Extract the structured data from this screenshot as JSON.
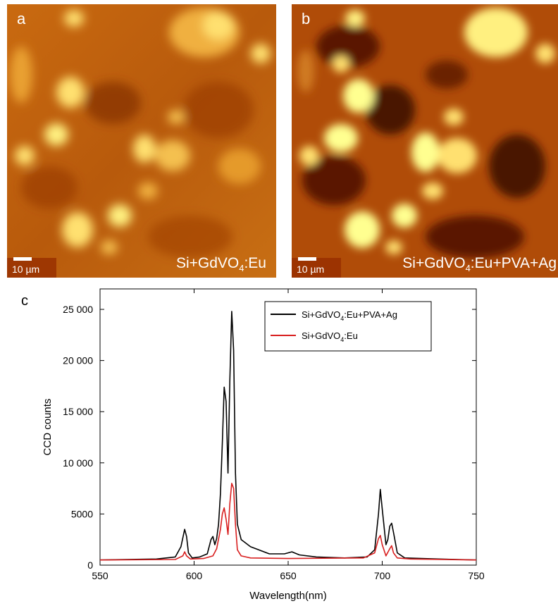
{
  "panel_a": {
    "letter": "a",
    "scalebar": "10 µm",
    "caption_main": "Si+GdVO",
    "caption_sub": "4",
    "caption_end": ":Eu"
  },
  "panel_b": {
    "letter": "b",
    "scalebar": "10 µm",
    "caption_main": "Si+GdVO",
    "caption_sub": "4",
    "caption_end": ":Eu+PVA+Ag"
  },
  "panel_c": {
    "letter": "c"
  },
  "colors": {
    "black_series": "#000000",
    "red_series": "#d81e1e",
    "map_dark": "#5a1800",
    "map_bright": "#ffff90"
  },
  "chart_data": {
    "type": "line",
    "xlabel": "Wavelength(nm)",
    "ylabel": "CCD counts",
    "xlim": [
      550,
      750
    ],
    "ylim": [
      0,
      27000
    ],
    "xticks": [
      550,
      600,
      650,
      700,
      750
    ],
    "xtick_labels": [
      "550",
      "600",
      "650",
      "700",
      "750"
    ],
    "yticks": [
      0,
      5000,
      10000,
      15000,
      20000,
      25000
    ],
    "ytick_labels": [
      "0",
      "5000",
      "10 000",
      "15 000",
      "20 000",
      "25 000"
    ],
    "legend_position": "top-right",
    "series": [
      {
        "name_main": "Si+GdVO",
        "name_sub": "4",
        "name_end": ":Eu+PVA+Ag",
        "color": "#000000",
        "x": [
          550,
          580,
          590,
          593,
          595,
          596,
          597,
          599,
          603,
          607,
          609,
          610,
          611,
          612,
          613,
          614,
          615,
          616,
          617,
          618,
          619,
          620,
          621,
          622,
          623,
          625,
          630,
          640,
          648,
          652,
          656,
          665,
          680,
          692,
          696,
          698,
          699,
          700,
          702,
          703,
          704,
          705,
          706,
          708,
          712,
          730,
          750
        ],
        "y": [
          500,
          600,
          800,
          1800,
          3500,
          2800,
          1200,
          700,
          800,
          1100,
          2500,
          2800,
          2000,
          2600,
          4000,
          7000,
          12000,
          17400,
          16000,
          9000,
          18000,
          24800,
          21000,
          9000,
          4000,
          2500,
          1800,
          1100,
          1100,
          1300,
          1000,
          800,
          700,
          800,
          1500,
          5000,
          7400,
          5500,
          2000,
          2500,
          3800,
          4100,
          3200,
          1200,
          700,
          600,
          500
        ]
      },
      {
        "name_main": "Si+GdVO",
        "name_sub": "4",
        "name_end": ":Eu",
        "color": "#d81e1e",
        "x": [
          550,
          590,
          594,
          595,
          596,
          598,
          605,
          610,
          612,
          614,
          615,
          616,
          617,
          618,
          619,
          620,
          621,
          622,
          623,
          625,
          630,
          650,
          690,
          696,
          698,
          699,
          700,
          702,
          704,
          705,
          706,
          708,
          715,
          750
        ],
        "y": [
          500,
          550,
          900,
          1300,
          900,
          600,
          650,
          900,
          1600,
          3500,
          5000,
          5600,
          4500,
          3000,
          6000,
          8000,
          7500,
          4000,
          1500,
          900,
          700,
          650,
          700,
          1200,
          2600,
          2900,
          2000,
          900,
          1600,
          1900,
          1200,
          700,
          600,
          500
        ]
      }
    ]
  }
}
